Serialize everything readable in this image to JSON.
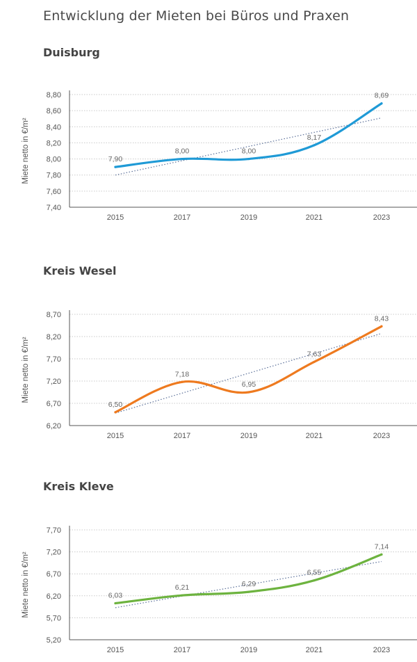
{
  "title": "Entwicklung der Mieten bei Büros und Praxen",
  "chart_data": [
    {
      "type": "line",
      "title": "Duisburg",
      "color": "#1f9ad6",
      "ylabel": "Miete netto in €/m²",
      "xlabel": "",
      "x": [
        "2015",
        "2017",
        "2019",
        "2021",
        "2023"
      ],
      "values": [
        7.9,
        8.0,
        8.0,
        8.17,
        8.69
      ],
      "value_labels": [
        "7,90",
        "8,00",
        "8,00",
        "8,17",
        "8,69"
      ],
      "yticks": [
        "7,40",
        "7,60",
        "7,80",
        "8,00",
        "8,20",
        "8,40",
        "8,60",
        "8,80"
      ],
      "ylim": [
        7.4,
        8.8
      ],
      "trendline": [
        7.8,
        8.51
      ],
      "grid": true
    },
    {
      "type": "line",
      "title": "Kreis Wesel",
      "color": "#ee7a1f",
      "ylabel": "Miete netto in €/m²",
      "xlabel": "",
      "x": [
        "2015",
        "2017",
        "2019",
        "2021",
        "2023"
      ],
      "values": [
        6.5,
        7.18,
        6.95,
        7.63,
        8.43
      ],
      "value_labels": [
        "6,50",
        "7,18",
        "6,95",
        "7,63",
        "8,43"
      ],
      "yticks": [
        "6,20",
        "6,70",
        "7,20",
        "7,70",
        "8,20",
        "8,70"
      ],
      "ylim": [
        6.2,
        8.7
      ],
      "trendline": [
        6.48,
        8.27
      ],
      "grid": true
    },
    {
      "type": "line",
      "title": "Kreis Kleve",
      "color": "#6db33f",
      "ylabel": "Miete netto in €/m²",
      "xlabel": "",
      "x": [
        "2015",
        "2017",
        "2019",
        "2021",
        "2023"
      ],
      "values": [
        6.03,
        6.21,
        6.29,
        6.55,
        7.14
      ],
      "value_labels": [
        "6,03",
        "6,21",
        "6,29",
        "6,55",
        "7,14"
      ],
      "yticks": [
        "5,20",
        "5,70",
        "6,20",
        "6,70",
        "7,20",
        "7,70"
      ],
      "ylim": [
        5.2,
        7.7
      ],
      "trendline": [
        5.93,
        6.98
      ],
      "grid": true
    }
  ]
}
